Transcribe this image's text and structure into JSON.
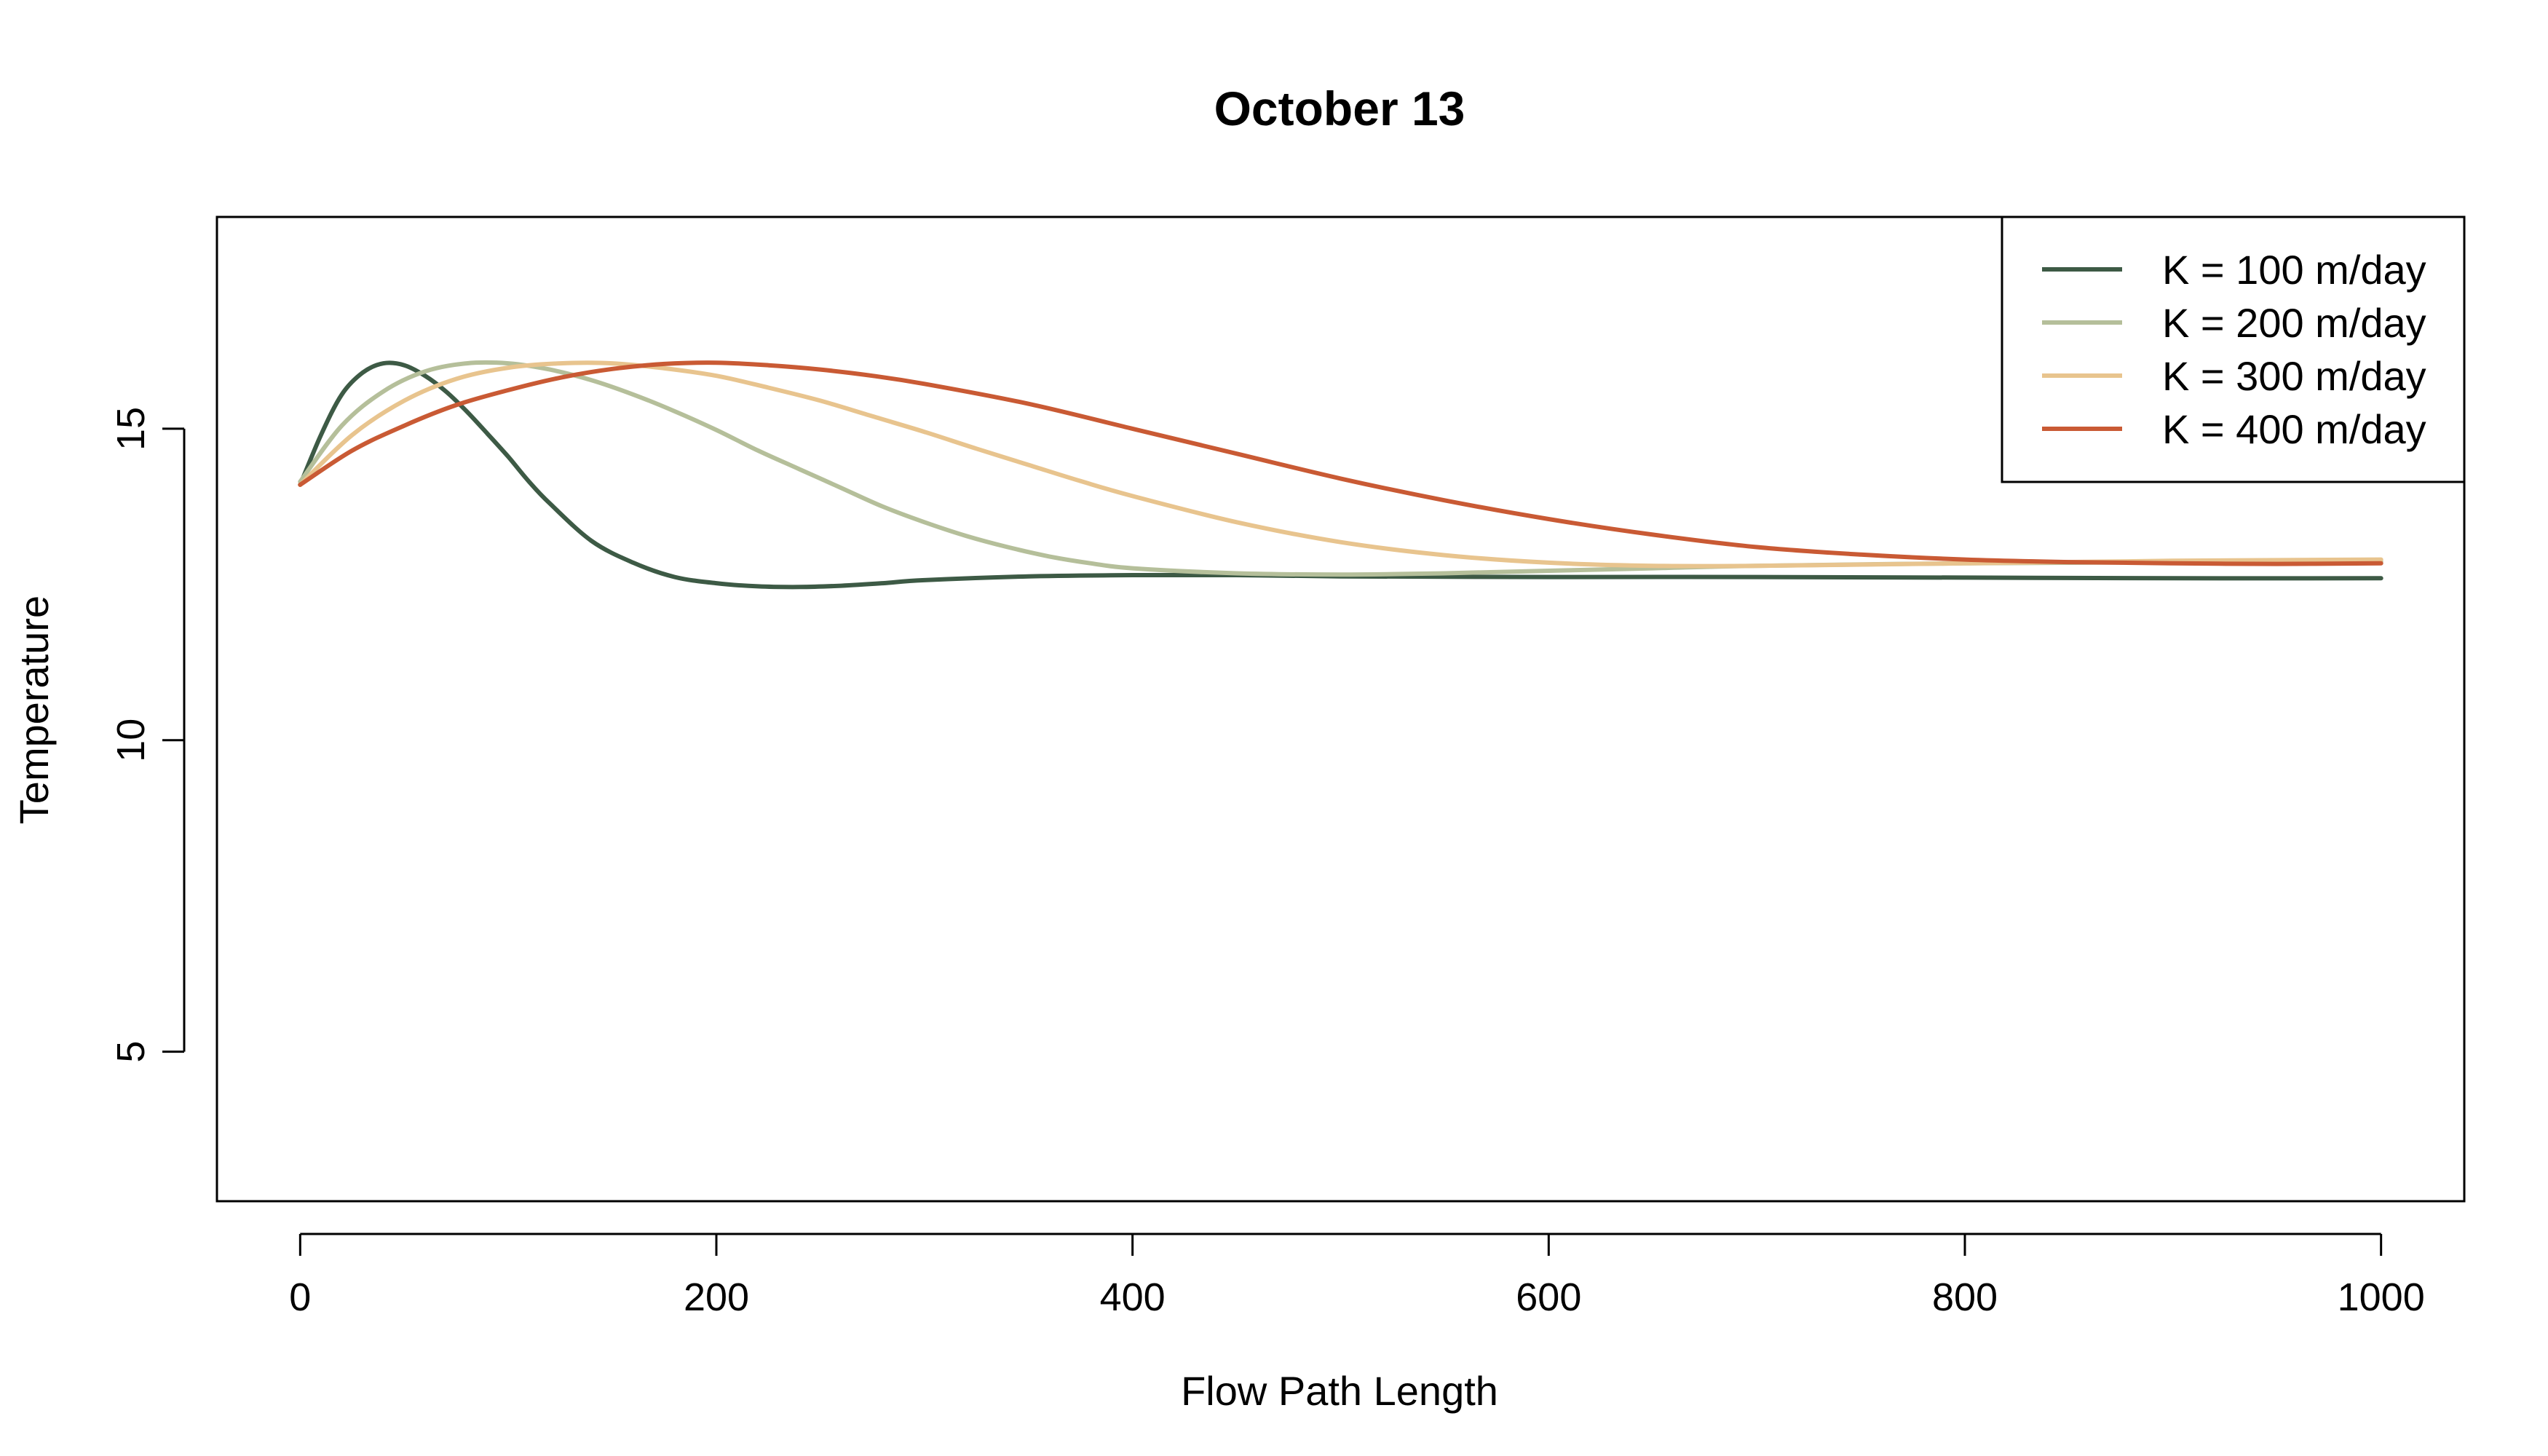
{
  "chart_data": {
    "type": "line",
    "title": "October 13",
    "xlabel": "Flow Path Length",
    "ylabel": "Temperature",
    "xlim": [
      -40,
      1040
    ],
    "ylim": [
      2.6,
      18.4
    ],
    "x_ticks": [
      0,
      200,
      400,
      600,
      800,
      1000
    ],
    "y_ticks": [
      5,
      10,
      15
    ],
    "legend_position": "top-right",
    "grid": false,
    "series": [
      {
        "name": "K = 100 m/day",
        "color": "#3d5a45",
        "x": [
          0,
          10,
          20,
          30,
          40,
          50,
          60,
          70,
          80,
          90,
          100,
          110,
          120,
          140,
          160,
          180,
          200,
          220,
          240,
          260,
          280,
          300,
          350,
          400,
          450,
          500,
          600,
          700,
          800,
          900,
          1000
        ],
        "y": [
          14.1,
          14.9,
          15.55,
          15.9,
          16.05,
          16.02,
          15.85,
          15.6,
          15.28,
          14.92,
          14.55,
          14.15,
          13.8,
          13.2,
          12.85,
          12.62,
          12.52,
          12.47,
          12.46,
          12.48,
          12.52,
          12.57,
          12.63,
          12.65,
          12.65,
          12.63,
          12.62,
          12.62,
          12.61,
          12.6,
          12.6
        ]
      },
      {
        "name": "K = 200 m/day",
        "color": "#b5bf9a",
        "x": [
          0,
          20,
          40,
          60,
          80,
          100,
          120,
          140,
          160,
          180,
          200,
          220,
          240,
          260,
          280,
          300,
          320,
          340,
          360,
          380,
          400,
          450,
          500,
          550,
          600,
          650,
          700,
          800,
          900,
          1000
        ],
        "y": [
          14.15,
          15.05,
          15.6,
          15.92,
          16.05,
          16.05,
          15.95,
          15.78,
          15.55,
          15.28,
          14.98,
          14.65,
          14.35,
          14.05,
          13.75,
          13.5,
          13.28,
          13.1,
          12.95,
          12.84,
          12.76,
          12.68,
          12.66,
          12.68,
          12.72,
          12.76,
          12.8,
          12.84,
          12.86,
          12.87
        ]
      },
      {
        "name": "K = 300 m/day",
        "color": "#e8c48e",
        "x": [
          0,
          25,
          50,
          75,
          100,
          125,
          150,
          175,
          200,
          225,
          250,
          275,
          300,
          325,
          350,
          375,
          400,
          450,
          500,
          550,
          600,
          650,
          700,
          800,
          900,
          1000
        ],
        "y": [
          14.1,
          14.9,
          15.45,
          15.8,
          15.98,
          16.05,
          16.05,
          15.97,
          15.85,
          15.66,
          15.45,
          15.2,
          14.95,
          14.68,
          14.42,
          14.16,
          13.92,
          13.5,
          13.18,
          12.97,
          12.85,
          12.8,
          12.8,
          12.84,
          12.88,
          12.9
        ]
      },
      {
        "name": "K = 400 m/day",
        "color": "#c95a34",
        "x": [
          0,
          25,
          50,
          75,
          100,
          125,
          150,
          175,
          200,
          225,
          250,
          275,
          300,
          350,
          400,
          450,
          500,
          550,
          600,
          650,
          700,
          750,
          800,
          850,
          900,
          950,
          1000
        ],
        "y": [
          14.1,
          14.65,
          15.05,
          15.38,
          15.62,
          15.82,
          15.96,
          16.04,
          16.06,
          16.02,
          15.95,
          15.85,
          15.72,
          15.4,
          15.0,
          14.6,
          14.2,
          13.85,
          13.55,
          13.3,
          13.1,
          12.98,
          12.9,
          12.86,
          12.84,
          12.83,
          12.84
        ]
      }
    ]
  }
}
